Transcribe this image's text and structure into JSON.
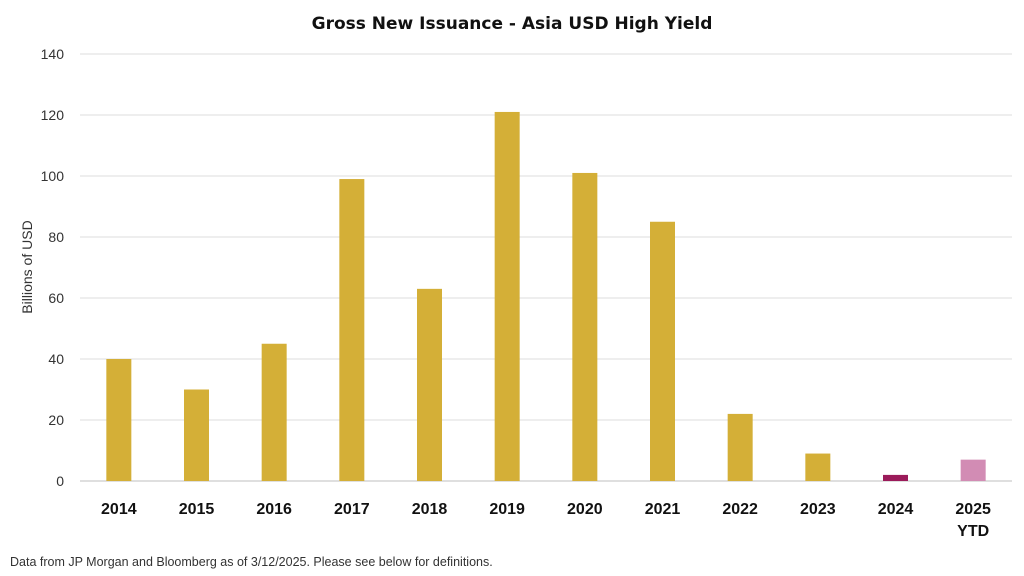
{
  "chart_data": {
    "type": "bar",
    "title": "Gross New Issuance - Asia USD High Yield",
    "ylabel": "Billions of USD",
    "xlabel": "",
    "ylim": [
      0,
      140
    ],
    "yticks": [
      0,
      20,
      40,
      60,
      80,
      100,
      120,
      140
    ],
    "grid": true,
    "categories": [
      "2014",
      "2015",
      "2016",
      "2017",
      "2018",
      "2019",
      "2020",
      "2021",
      "2022",
      "2023",
      "2024",
      "2025\nYTD"
    ],
    "values": [
      40,
      30,
      45,
      99,
      63,
      121,
      101,
      85,
      22,
      9,
      2,
      7
    ],
    "colors": [
      "#D4AF37",
      "#D4AF37",
      "#D4AF37",
      "#D4AF37",
      "#D4AF37",
      "#D4AF37",
      "#D4AF37",
      "#D4AF37",
      "#D4AF37",
      "#D4AF37",
      "#9B1B5A",
      "#D28CB4"
    ]
  },
  "footnote": "Data from JP Morgan and Bloomberg as of 3/12/2025. Please see below for definitions."
}
